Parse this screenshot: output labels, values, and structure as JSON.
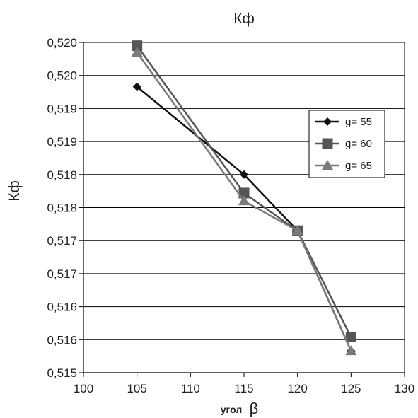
{
  "chart_data": {
    "type": "line",
    "title": "Кф",
    "ylabel": "Кф",
    "xlabel": "угол",
    "xlabel_symbol": "β",
    "xlim": [
      100,
      130
    ],
    "ylim": [
      0.515,
      0.52
    ],
    "x_ticks": [
      100,
      105,
      110,
      115,
      120,
      125,
      130
    ],
    "x_tick_labels": [
      "100",
      "105",
      "110",
      "115",
      "120",
      "125",
      "130"
    ],
    "y_ticks": [
      0.515,
      0.5155,
      0.516,
      0.5165,
      0.517,
      0.5175,
      0.518,
      0.5185,
      0.519,
      0.5195,
      0.52
    ],
    "y_tick_labels": [
      "0,515",
      "0,516",
      "0,516",
      "0,517",
      "0,517",
      "0,518",
      "0,518",
      "0,519",
      "0,519",
      "0,520",
      "0,520"
    ],
    "grid": "horizontal",
    "legend_position": "right",
    "x": [
      105,
      115,
      120,
      125
    ],
    "series": [
      {
        "name": "g= 55",
        "values": [
          0.51933,
          0.518,
          0.51715,
          0.51533
        ],
        "color": "#111111",
        "marker": "diamond"
      },
      {
        "name": "g= 60",
        "values": [
          0.51995,
          0.51772,
          0.51715,
          0.51554
        ],
        "color": "#555555",
        "marker": "square"
      },
      {
        "name": "g= 65",
        "values": [
          0.51985,
          0.5176,
          0.51715,
          0.51533
        ],
        "color": "#7a7a7a",
        "marker": "triangle"
      }
    ]
  }
}
